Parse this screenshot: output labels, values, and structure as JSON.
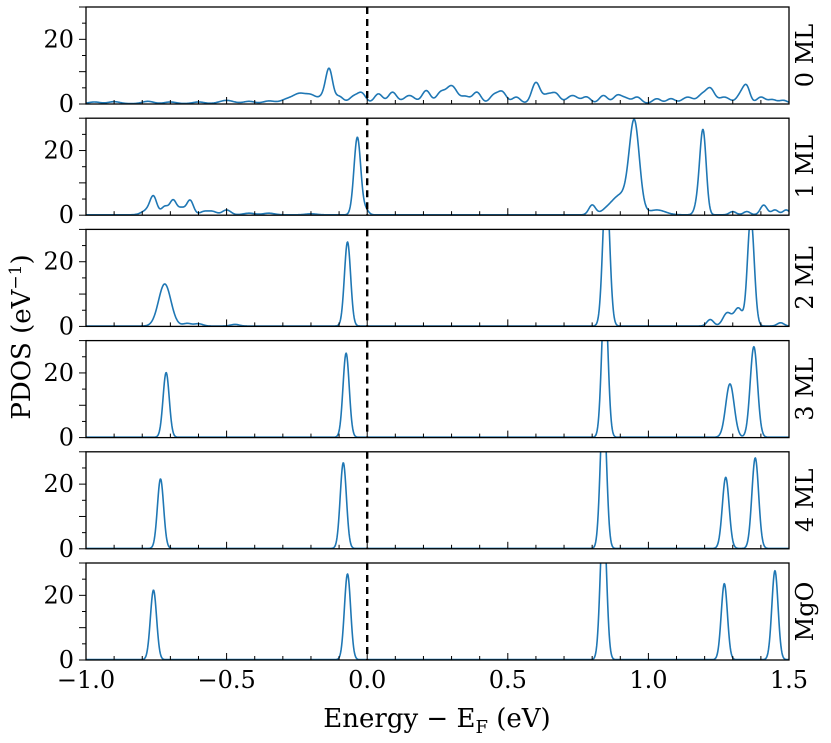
{
  "chart_data": {
    "type": "line",
    "xlabel": "Energy − E",
    "xlabel_sub": "F",
    "xlabel_unit": " (eV)",
    "ylabel": "PDOS (eV",
    "ylabel_sup": "−1",
    "ylabel_end": ")",
    "xlim": [
      -1.0,
      1.5
    ],
    "ylim": [
      0,
      30
    ],
    "x_ticks": [
      -1.0,
      -0.5,
      0.0,
      0.5,
      1.0,
      1.5
    ],
    "x_tick_labels": [
      "−1.0",
      "−0.5",
      "0.0",
      "0.5",
      "1.0",
      "1.5"
    ],
    "y_ticks": [
      0,
      20
    ],
    "y_tick_labels": [
      "0",
      "20"
    ],
    "fermi_level": 0.0,
    "line_color": "#1f77b4",
    "fermi_line_style": "dashed",
    "panels": [
      {
        "label": "0 ML",
        "peaks": [
          [
            -0.97,
            0.5,
            0.02
          ],
          [
            -0.9,
            0.6,
            0.02
          ],
          [
            -0.78,
            0.7,
            0.02
          ],
          [
            -0.7,
            0.5,
            0.02
          ],
          [
            -0.6,
            0.5,
            0.02
          ],
          [
            -0.5,
            1.0,
            0.025
          ],
          [
            -0.42,
            0.7,
            0.02
          ],
          [
            -0.35,
            0.8,
            0.02
          ],
          [
            -0.28,
            1.5,
            0.025
          ],
          [
            -0.24,
            2.5,
            0.02
          ],
          [
            -0.2,
            2.5,
            0.02
          ],
          [
            -0.15,
            2.5,
            0.018
          ],
          [
            -0.135,
            9.0,
            0.012
          ],
          [
            -0.1,
            2.2,
            0.015
          ],
          [
            -0.05,
            2.0,
            0.015
          ],
          [
            -0.02,
            3.2,
            0.015
          ],
          [
            0.04,
            3.0,
            0.015
          ],
          [
            0.09,
            3.5,
            0.015
          ],
          [
            0.15,
            2.5,
            0.02
          ],
          [
            0.21,
            4.0,
            0.015
          ],
          [
            0.26,
            3.0,
            0.015
          ],
          [
            0.3,
            5.5,
            0.02
          ],
          [
            0.35,
            2.0,
            0.015
          ],
          [
            0.39,
            3.5,
            0.015
          ],
          [
            0.45,
            2.5,
            0.015
          ],
          [
            0.48,
            3.5,
            0.015
          ],
          [
            0.53,
            2.0,
            0.015
          ],
          [
            0.6,
            6.5,
            0.015
          ],
          [
            0.64,
            2.5,
            0.015
          ],
          [
            0.67,
            3.0,
            0.015
          ],
          [
            0.73,
            2.5,
            0.02
          ],
          [
            0.78,
            2.0,
            0.015
          ],
          [
            0.84,
            2.5,
            0.015
          ],
          [
            0.89,
            2.5,
            0.015
          ],
          [
            0.92,
            1.5,
            0.015
          ],
          [
            0.96,
            2.0,
            0.015
          ],
          [
            1.03,
            1.5,
            0.015
          ],
          [
            1.08,
            1.5,
            0.015
          ],
          [
            1.14,
            2.0,
            0.02
          ],
          [
            1.19,
            2.5,
            0.015
          ],
          [
            1.22,
            4.5,
            0.015
          ],
          [
            1.27,
            2.0,
            0.02
          ],
          [
            1.33,
            3.0,
            0.015
          ],
          [
            1.35,
            4.5,
            0.012
          ],
          [
            1.4,
            2.0,
            0.015
          ],
          [
            1.44,
            1.2,
            0.015
          ],
          [
            1.48,
            1.0,
            0.015
          ]
        ]
      },
      {
        "label": "1 ML",
        "peaks": [
          [
            -0.76,
            5.0,
            0.012
          ],
          [
            -0.78,
            1.5,
            0.02
          ],
          [
            -0.72,
            2.5,
            0.012
          ],
          [
            -0.69,
            4.5,
            0.012
          ],
          [
            -0.66,
            2.0,
            0.012
          ],
          [
            -0.63,
            4.5,
            0.012
          ],
          [
            -0.58,
            1.0,
            0.015
          ],
          [
            -0.55,
            1.0,
            0.015
          ],
          [
            -0.5,
            1.5,
            0.015
          ],
          [
            -0.42,
            0.5,
            0.02
          ],
          [
            -0.35,
            0.5,
            0.02
          ],
          [
            -0.2,
            0.3,
            0.02
          ],
          [
            -0.035,
            24.0,
            0.012
          ],
          [
            -0.005,
            1.5,
            0.01
          ],
          [
            0.8,
            3.0,
            0.012
          ],
          [
            0.85,
            1.0,
            0.02
          ],
          [
            0.9,
            6.0,
            0.03
          ],
          [
            0.95,
            28.0,
            0.018
          ],
          [
            1.03,
            1.5,
            0.03
          ],
          [
            1.18,
            5.0,
            0.012
          ],
          [
            1.195,
            24.0,
            0.011
          ],
          [
            1.3,
            1.0,
            0.012
          ],
          [
            1.35,
            1.0,
            0.012
          ],
          [
            1.41,
            3.0,
            0.012
          ],
          [
            1.45,
            1.5,
            0.012
          ],
          [
            1.49,
            1.5,
            0.012
          ]
        ]
      },
      {
        "label": "2 ML",
        "peaks": [
          [
            -0.72,
            13.0,
            0.022
          ],
          [
            -0.64,
            0.8,
            0.015
          ],
          [
            -0.6,
            0.7,
            0.015
          ],
          [
            -0.47,
            0.5,
            0.015
          ],
          [
            -0.07,
            26.0,
            0.011
          ],
          [
            0.85,
            45.0,
            0.012
          ],
          [
            1.22,
            2.0,
            0.012
          ],
          [
            1.28,
            4.0,
            0.015
          ],
          [
            1.32,
            5.5,
            0.015
          ],
          [
            1.36,
            4.0,
            0.01
          ],
          [
            1.365,
            30.0,
            0.012
          ],
          [
            1.47,
            1.0,
            0.012
          ]
        ]
      },
      {
        "label": "3 ML",
        "peaks": [
          [
            -0.715,
            20.0,
            0.011
          ],
          [
            -0.075,
            26.0,
            0.011
          ],
          [
            0.845,
            45.0,
            0.011
          ],
          [
            1.29,
            16.5,
            0.015
          ],
          [
            1.375,
            28.0,
            0.013
          ]
        ]
      },
      {
        "label": "4 ML",
        "peaks": [
          [
            -0.735,
            21.5,
            0.011
          ],
          [
            -0.085,
            26.5,
            0.011
          ],
          [
            0.84,
            45.0,
            0.011
          ],
          [
            1.275,
            22.0,
            0.012
          ],
          [
            1.38,
            28.0,
            0.012
          ]
        ]
      },
      {
        "label": "MgO",
        "peaks": [
          [
            -0.76,
            21.5,
            0.011
          ],
          [
            -0.07,
            26.5,
            0.011
          ],
          [
            0.84,
            45.0,
            0.011
          ],
          [
            1.27,
            23.5,
            0.011
          ],
          [
            1.45,
            27.5,
            0.011
          ]
        ]
      }
    ]
  }
}
